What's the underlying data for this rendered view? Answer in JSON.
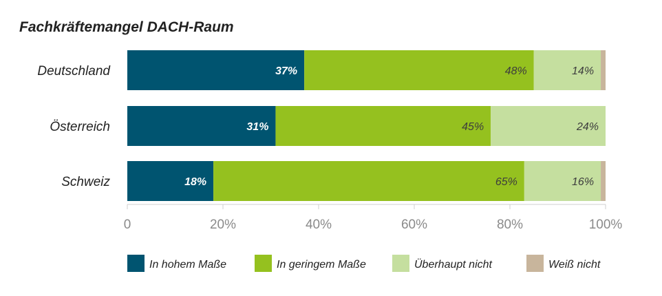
{
  "chart_data": {
    "type": "bar",
    "orientation": "horizontal",
    "stacked": true,
    "title": "Fachkräftemangel DACH-Raum",
    "categories": [
      "Deutschland",
      "Österreich",
      "Schweiz"
    ],
    "series": [
      {
        "name": "In hohem Maße",
        "color": "#005470",
        "values": [
          37,
          31,
          18
        ],
        "labels": [
          "37%",
          "31%",
          "18%"
        ],
        "label_color": "#ffffff"
      },
      {
        "name": "In geringem Maße",
        "color": "#95c11f",
        "values": [
          48,
          45,
          65
        ],
        "labels": [
          "48%",
          "45%",
          "65%"
        ],
        "label_color": "#3d3d3d"
      },
      {
        "name": "Überhaupt nicht",
        "color": "#c5df9f",
        "values": [
          14,
          24,
          16
        ],
        "labels": [
          "14%",
          "24%",
          "16%"
        ],
        "label_color": "#3d3d3d"
      },
      {
        "name": "Weiß nicht",
        "color": "#c8b59c",
        "values": [
          1,
          0,
          1
        ],
        "labels": [
          "",
          "",
          ""
        ],
        "label_color": "#3d3d3d"
      }
    ],
    "xlim": [
      0,
      100
    ],
    "x_ticks": [
      0,
      20,
      40,
      60,
      80,
      100
    ],
    "x_tick_labels": [
      "0",
      "20%",
      "40%",
      "60%",
      "80%",
      "100%"
    ],
    "grid": false,
    "legend_position": "bottom"
  }
}
